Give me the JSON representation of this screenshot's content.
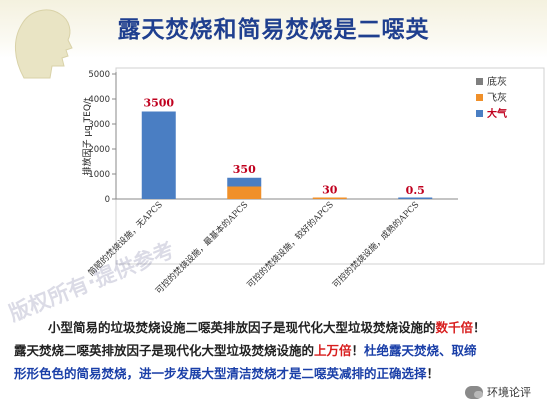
{
  "slide": {
    "title": "露天焚烧和简易焚烧是二噁英",
    "watermark": "版权所有·提供参考",
    "brand": "环境论评"
  },
  "body": {
    "line1_a": "小型简易的垃圾焚烧设施二噁英排放因子是现代化大型垃圾焚烧设施的",
    "line1_b": "数千倍",
    "line1_c": "！",
    "line2_a": "露天焚烧二噁英排放因子是现代化大型垃圾焚烧设施的",
    "line2_b": "上万倍",
    "line2_c": "！",
    "line2_d": "杜绝露天焚烧、取缔",
    "line3_a": "形形色色的简易焚烧，进一步发展大型清洁焚烧才是二噁英减排的正确选择",
    "line3_b": "！"
  },
  "colors": {
    "title": "#1f3f8f",
    "floor_ash": "#7f7f7f",
    "fly_ash": "#f0902a",
    "air": "#4a7ec3",
    "data_label": "#c0001e"
  },
  "chart_data": {
    "type": "bar",
    "stacked": true,
    "categories": [
      "简陋的焚烧设施，无APCS",
      "可控的焚烧设施，最基本的APCS",
      "可控的焚烧设施，较好的APCS",
      "可控的焚烧设施，成熟的APCS"
    ],
    "series": [
      {
        "name": "底灰",
        "values": [
          0,
          0,
          0,
          0
        ]
      },
      {
        "name": "飞灰",
        "values": [
          0,
          500,
          30,
          0
        ]
      },
      {
        "name": "大气",
        "values": [
          3500,
          350,
          0,
          0.5
        ]
      }
    ],
    "data_labels": [
      "3500",
      "350",
      "30",
      "0.5"
    ],
    "ylabel": "排放因子 µg TEQ/t",
    "yticks": [
      "0",
      "1000",
      "2000",
      "3000",
      "4000",
      "5000"
    ],
    "ylim": [
      0,
      5000
    ],
    "legend_position": "right",
    "grid": false
  }
}
